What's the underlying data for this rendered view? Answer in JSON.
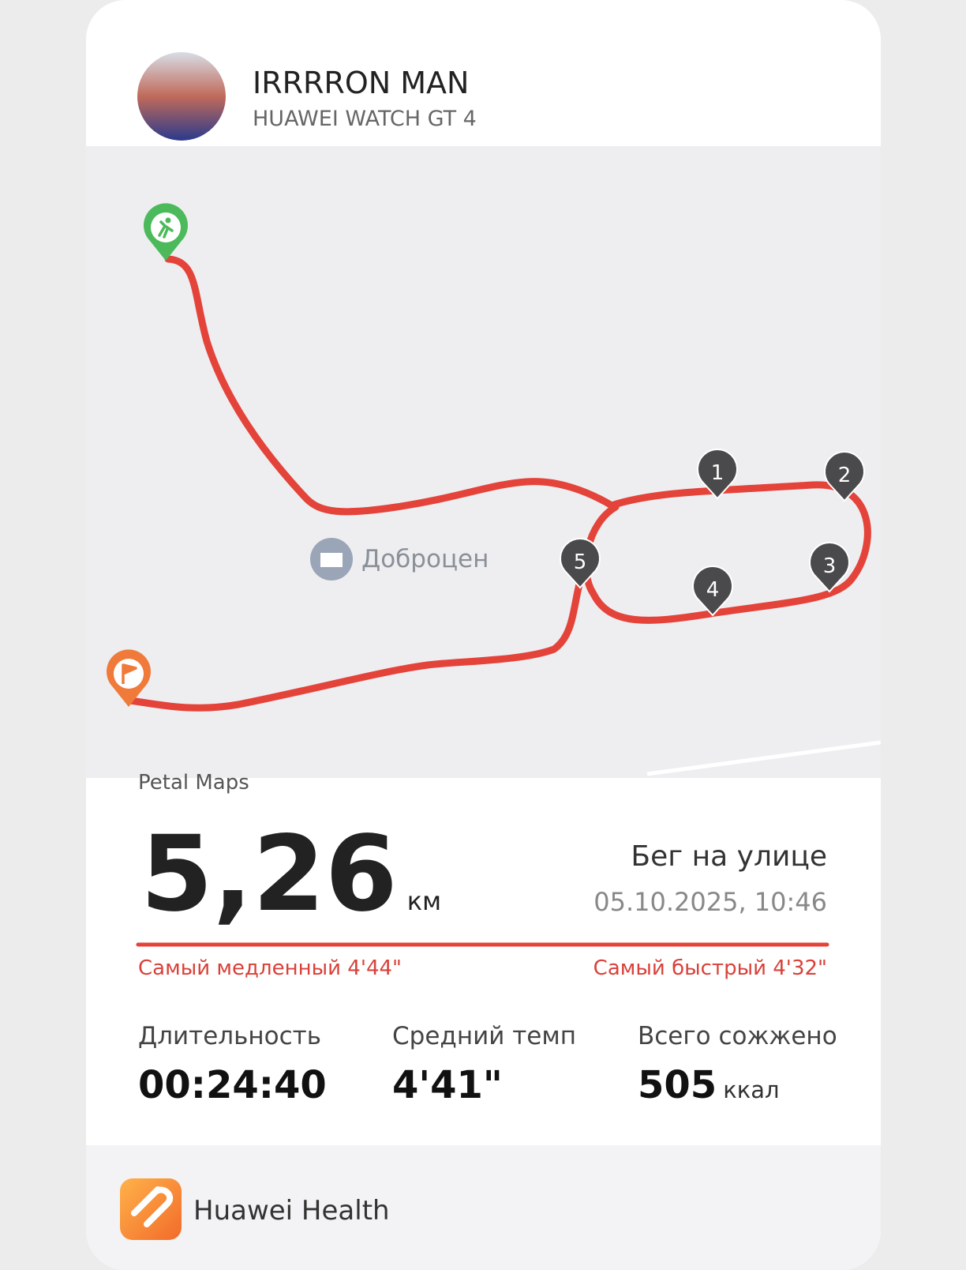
{
  "header": {
    "name": "IRRRRON MAN",
    "device": "HUAWEI WATCH GT 4"
  },
  "map": {
    "place": "Доброцен",
    "markers": [
      "1",
      "2",
      "3",
      "4",
      "5"
    ],
    "attribution": "Petal Maps"
  },
  "summary": {
    "distance": "5,26",
    "distance_unit": "км",
    "activity": "Бег на улице",
    "date": "05.10.2025, 10:46",
    "slowest": "Самый медленный 4'44\"",
    "fastest": "Самый быстрый 4'32\""
  },
  "metrics": [
    {
      "label": "Длительность",
      "value": "00:24:40"
    },
    {
      "label": "Средний темп",
      "value": "4'41\""
    },
    {
      "label": "Всего сожжено",
      "value": "505",
      "unit": "ккал"
    }
  ],
  "footer": {
    "app": "Huawei Health"
  }
}
